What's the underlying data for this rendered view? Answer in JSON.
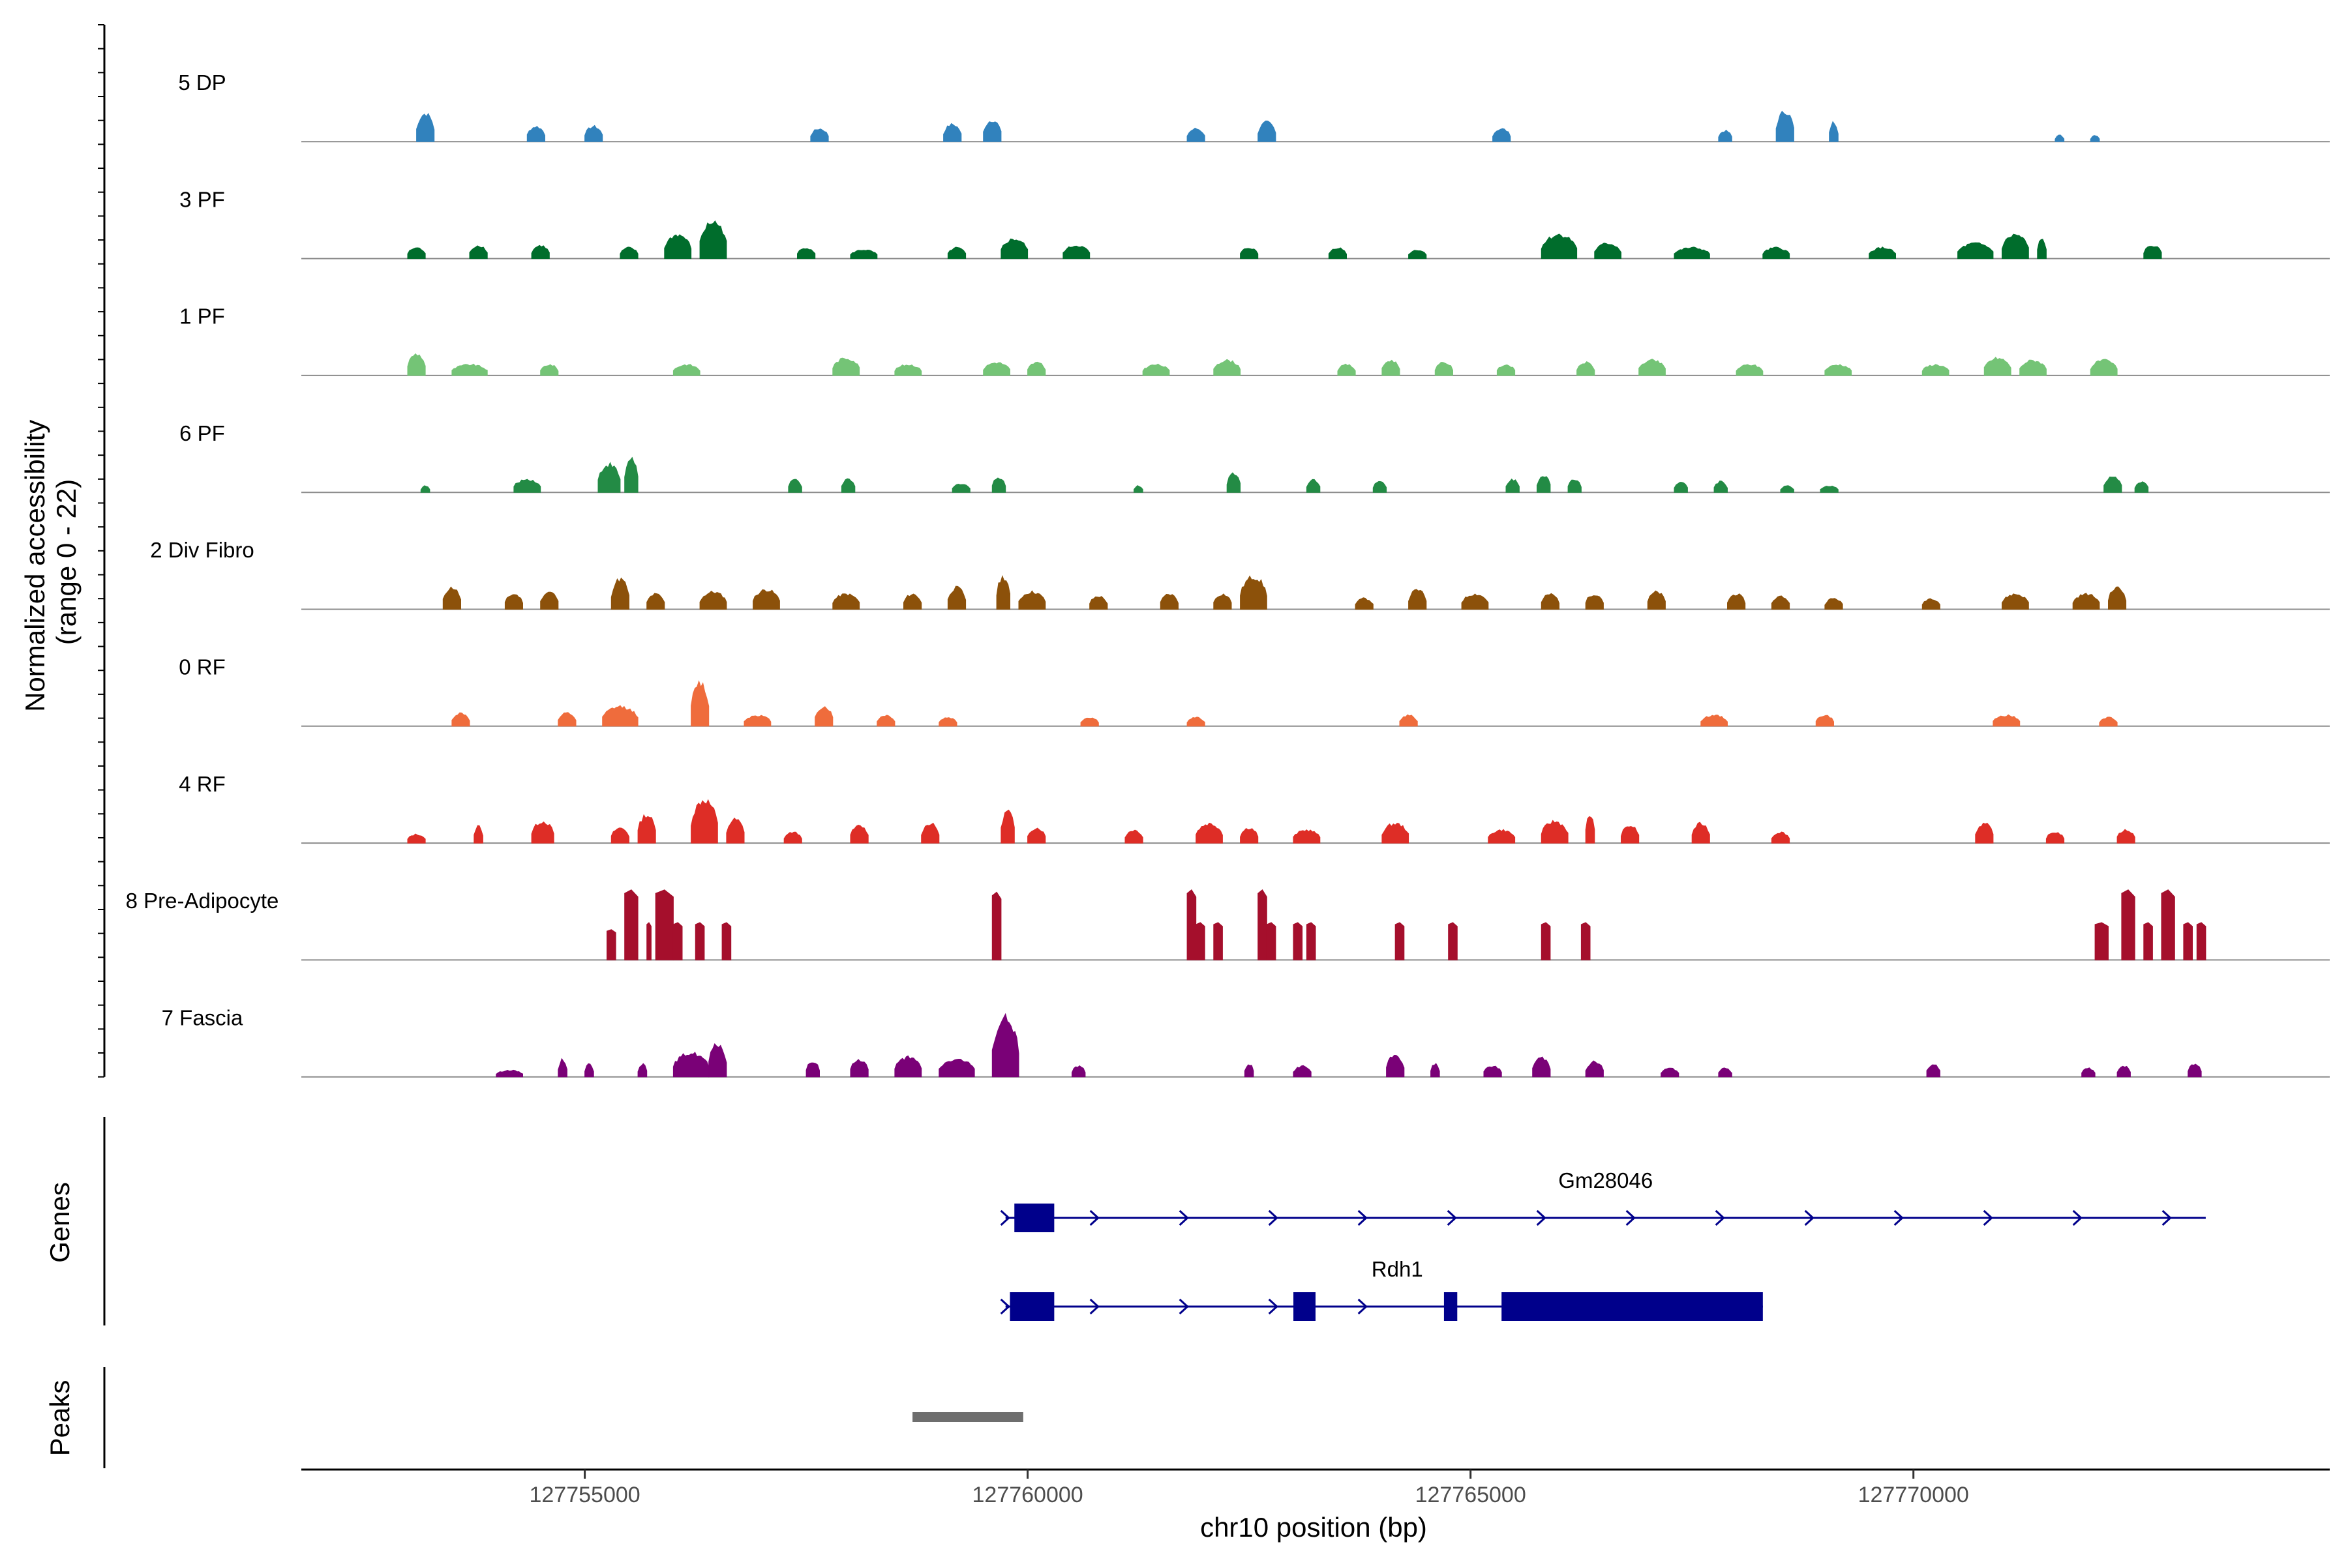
{
  "chart_data": {
    "type": "area",
    "title": "",
    "ylabel": "Normalized accessibility (range 0 - 22)",
    "ylabel_lines": [
      "Normalized accessibility",
      "(range 0 - 22)"
    ],
    "y_range": [
      0,
      22
    ],
    "xlabel": "chr10 position (bp)",
    "x_range": [
      127751800,
      127774700
    ],
    "x_ticks": [
      127755000,
      127760000,
      127765000,
      127770000
    ],
    "x_tick_labels": [
      "127755000",
      "127760000",
      "127765000",
      "127770000"
    ],
    "signal_start": 127752850,
    "signal_end": 127773300,
    "series": [
      {
        "name": "5 DP",
        "color": "#3182bd",
        "peaks": [
          [
            127753100,
            127753300,
            6.5
          ],
          [
            127754350,
            127754550,
            3.5
          ],
          [
            127755000,
            127755200,
            3.5
          ],
          [
            127757550,
            127757750,
            3.0
          ],
          [
            127759050,
            127759250,
            4.0
          ],
          [
            127759500,
            127759700,
            5.0
          ],
          [
            127761800,
            127762000,
            3.0
          ],
          [
            127762600,
            127762800,
            4.5
          ],
          [
            127765250,
            127765450,
            3.0
          ],
          [
            127767800,
            127767950,
            2.5
          ],
          [
            127768450,
            127768650,
            7.0
          ],
          [
            127769050,
            127769150,
            4.5
          ],
          [
            127771600,
            127771700,
            1.5
          ],
          [
            127772000,
            127772100,
            1.5
          ]
        ]
      },
      {
        "name": "3 PF",
        "color": "#006d2c",
        "peaks": [
          [
            127753000,
            127753200,
            2.5
          ],
          [
            127753700,
            127753900,
            3.0
          ],
          [
            127754400,
            127754600,
            3.0
          ],
          [
            127755400,
            127755600,
            2.5
          ],
          [
            127755900,
            127756200,
            5.5
          ],
          [
            127756300,
            127756600,
            8.5
          ],
          [
            127757400,
            127757600,
            2.5
          ],
          [
            127758000,
            127758300,
            2.0
          ],
          [
            127759100,
            127759300,
            2.5
          ],
          [
            127759700,
            127760000,
            4.5
          ],
          [
            127760400,
            127760700,
            3.0
          ],
          [
            127762400,
            127762600,
            2.5
          ],
          [
            127763400,
            127763600,
            2.5
          ],
          [
            127764300,
            127764500,
            2.0
          ],
          [
            127765800,
            127766200,
            5.5
          ],
          [
            127766400,
            127766700,
            3.5
          ],
          [
            127767300,
            127767700,
            2.5
          ],
          [
            127768300,
            127768600,
            2.5
          ],
          [
            127769500,
            127769800,
            2.5
          ],
          [
            127770500,
            127770900,
            3.5
          ],
          [
            127771000,
            127771300,
            5.5
          ],
          [
            127771400,
            127771500,
            4.5
          ],
          [
            127772600,
            127772800,
            3.0
          ]
        ]
      },
      {
        "name": "1 PF",
        "color": "#74c476",
        "peaks": [
          [
            127753000,
            127753200,
            5.0
          ],
          [
            127753500,
            127753900,
            2.5
          ],
          [
            127754500,
            127754700,
            2.5
          ],
          [
            127756000,
            127756300,
            2.5
          ],
          [
            127757800,
            127758100,
            4.0
          ],
          [
            127758500,
            127758800,
            2.5
          ],
          [
            127759500,
            127759800,
            3.0
          ],
          [
            127760000,
            127760200,
            3.0
          ],
          [
            127761300,
            127761600,
            2.5
          ],
          [
            127762100,
            127762400,
            3.5
          ],
          [
            127763500,
            127763700,
            2.5
          ],
          [
            127764000,
            127764200,
            3.5
          ],
          [
            127764600,
            127764800,
            3.0
          ],
          [
            127765300,
            127765500,
            2.5
          ],
          [
            127766200,
            127766400,
            3.0
          ],
          [
            127766900,
            127767200,
            3.5
          ],
          [
            127768000,
            127768300,
            2.5
          ],
          [
            127769000,
            127769300,
            2.5
          ],
          [
            127770100,
            127770400,
            2.5
          ],
          [
            127770800,
            127771100,
            4.0
          ],
          [
            127771200,
            127771500,
            3.5
          ],
          [
            127772000,
            127772300,
            3.5
          ]
        ]
      },
      {
        "name": "6 PF",
        "color": "#238b45",
        "peaks": [
          [
            127753150,
            127753250,
            1.5
          ],
          [
            127754200,
            127754500,
            3.0
          ],
          [
            127755150,
            127755400,
            6.5
          ],
          [
            127755450,
            127755600,
            8.0
          ],
          [
            127757300,
            127757450,
            3.0
          ],
          [
            127757900,
            127758050,
            3.0
          ],
          [
            127759150,
            127759350,
            2.0
          ],
          [
            127759600,
            127759750,
            3.5
          ],
          [
            127761200,
            127761300,
            1.5
          ],
          [
            127762250,
            127762400,
            4.5
          ],
          [
            127763150,
            127763300,
            3.0
          ],
          [
            127763900,
            127764050,
            2.5
          ],
          [
            127765400,
            127765550,
            3.0
          ],
          [
            127765750,
            127765900,
            4.0
          ],
          [
            127766100,
            127766250,
            3.0
          ],
          [
            127767300,
            127767450,
            2.5
          ],
          [
            127767750,
            127767900,
            2.5
          ],
          [
            127768500,
            127768650,
            1.5
          ],
          [
            127768950,
            127769150,
            1.5
          ],
          [
            127772150,
            127772350,
            3.5
          ],
          [
            127772500,
            127772650,
            2.5
          ]
        ]
      },
      {
        "name": "2 Div Fibro",
        "color": "#8c510a",
        "peaks": [
          [
            127753400,
            127753600,
            5.0
          ],
          [
            127754100,
            127754300,
            3.5
          ],
          [
            127754500,
            127754700,
            4.0
          ],
          [
            127755300,
            127755500,
            7.0
          ],
          [
            127755700,
            127755900,
            3.5
          ],
          [
            127756300,
            127756600,
            4.0
          ],
          [
            127756900,
            127757200,
            4.5
          ],
          [
            127757800,
            127758100,
            3.5
          ],
          [
            127758600,
            127758800,
            3.5
          ],
          [
            127759100,
            127759300,
            5.0
          ],
          [
            127759650,
            127759800,
            7.5
          ],
          [
            127759900,
            127760200,
            4.0
          ],
          [
            127760700,
            127760900,
            3.0
          ],
          [
            127761500,
            127761700,
            3.5
          ],
          [
            127762100,
            127762300,
            3.5
          ],
          [
            127762400,
            127762700,
            7.5
          ],
          [
            127763700,
            127763900,
            2.5
          ],
          [
            127764300,
            127764500,
            4.5
          ],
          [
            127764900,
            127765200,
            3.5
          ],
          [
            127765800,
            127766000,
            3.5
          ],
          [
            127766300,
            127766500,
            3.5
          ],
          [
            127767000,
            127767200,
            4.0
          ],
          [
            127767900,
            127768100,
            3.5
          ],
          [
            127768400,
            127768600,
            3.0
          ],
          [
            127769000,
            127769200,
            2.5
          ],
          [
            127770100,
            127770300,
            2.5
          ],
          [
            127771000,
            127771300,
            3.5
          ],
          [
            127771800,
            127772100,
            3.5
          ],
          [
            127772200,
            127772400,
            5.0
          ]
        ]
      },
      {
        "name": "0 RF",
        "color": "#ef6c3c",
        "peaks": [
          [
            127753500,
            127753700,
            3.0
          ],
          [
            127754700,
            127754900,
            3.0
          ],
          [
            127755200,
            127755600,
            4.5
          ],
          [
            127756200,
            127756400,
            10.0
          ],
          [
            127756800,
            127757100,
            2.5
          ],
          [
            127757600,
            127757800,
            4.5
          ],
          [
            127758300,
            127758500,
            2.5
          ],
          [
            127759000,
            127759200,
            2.0
          ],
          [
            127760600,
            127760800,
            2.0
          ],
          [
            127761800,
            127762000,
            2.0
          ],
          [
            127764200,
            127764400,
            2.5
          ],
          [
            127767600,
            127767900,
            2.5
          ],
          [
            127768900,
            127769100,
            2.5
          ],
          [
            127770900,
            127771200,
            2.5
          ],
          [
            127772100,
            127772300,
            2.0
          ]
        ]
      },
      {
        "name": "4 RF",
        "color": "#de2d26",
        "peaks": [
          [
            127753000,
            127753200,
            2.0
          ],
          [
            127753750,
            127753850,
            4.0
          ],
          [
            127754400,
            127754650,
            5.0
          ],
          [
            127755300,
            127755500,
            3.5
          ],
          [
            127755600,
            127755800,
            6.5
          ],
          [
            127756200,
            127756500,
            10.0
          ],
          [
            127756600,
            127756800,
            5.5
          ],
          [
            127757250,
            127757450,
            2.5
          ],
          [
            127758000,
            127758200,
            4.0
          ],
          [
            127758800,
            127759000,
            4.5
          ],
          [
            127759700,
            127759850,
            7.5
          ],
          [
            127760000,
            127760200,
            3.5
          ],
          [
            127761100,
            127761300,
            3.0
          ],
          [
            127761900,
            127762200,
            4.5
          ],
          [
            127762400,
            127762600,
            3.5
          ],
          [
            127763000,
            127763300,
            3.0
          ],
          [
            127764000,
            127764300,
            4.5
          ],
          [
            127765200,
            127765500,
            3.0
          ],
          [
            127765800,
            127766100,
            5.0
          ],
          [
            127766300,
            127766400,
            6.5
          ],
          [
            127766700,
            127766900,
            4.0
          ],
          [
            127767500,
            127767700,
            4.5
          ],
          [
            127768400,
            127768600,
            2.5
          ],
          [
            127770700,
            127770900,
            4.5
          ],
          [
            127771500,
            127771700,
            2.5
          ],
          [
            127772300,
            127772500,
            3.0
          ]
        ]
      },
      {
        "name": "8 Pre-Adipocyte",
        "color": "#a50f2c",
        "peaks": [
          [
            127755250,
            127755350,
            6.5
          ],
          [
            127755450,
            127755600,
            15.0
          ],
          [
            127755700,
            127755750,
            8.0
          ],
          [
            127755800,
            127756000,
            15.0
          ],
          [
            127756000,
            127756100,
            8.0
          ],
          [
            127756250,
            127756350,
            8.0
          ],
          [
            127756550,
            127756650,
            8.0
          ],
          [
            127759600,
            127759700,
            14.5
          ],
          [
            127761800,
            127761900,
            15.0
          ],
          [
            127761900,
            127762000,
            8.0
          ],
          [
            127762100,
            127762200,
            8.0
          ],
          [
            127762600,
            127762700,
            15.0
          ],
          [
            127762700,
            127762800,
            8.0
          ],
          [
            127763000,
            127763100,
            8.0
          ],
          [
            127763150,
            127763250,
            8.0
          ],
          [
            127764150,
            127764250,
            8.0
          ],
          [
            127764750,
            127764850,
            8.0
          ],
          [
            127765800,
            127765900,
            8.0
          ],
          [
            127766250,
            127766350,
            8.0
          ],
          [
            127772050,
            127772200,
            8.0
          ],
          [
            127772350,
            127772500,
            15.0
          ],
          [
            127772600,
            127772700,
            8.0
          ],
          [
            127772800,
            127772950,
            15.0
          ],
          [
            127773050,
            127773150,
            8.0
          ],
          [
            127773200,
            127773300,
            8.0
          ]
        ]
      },
      {
        "name": "7 Fascia",
        "color": "#7a0177",
        "peaks": [
          [
            127754000,
            127754300,
            1.5
          ],
          [
            127754700,
            127754800,
            4.0
          ],
          [
            127755000,
            127755100,
            3.0
          ],
          [
            127755600,
            127755700,
            3.0
          ],
          [
            127756000,
            127756400,
            5.5
          ],
          [
            127756400,
            127756600,
            7.5
          ],
          [
            127757500,
            127757650,
            3.5
          ],
          [
            127758000,
            127758200,
            4.0
          ],
          [
            127758500,
            127758800,
            4.5
          ],
          [
            127759000,
            127759400,
            4.0
          ],
          [
            127759600,
            127759900,
            13.5
          ],
          [
            127760500,
            127760650,
            2.5
          ],
          [
            127762450,
            127762550,
            3.0
          ],
          [
            127763000,
            127763200,
            2.5
          ],
          [
            127764050,
            127764250,
            5.0
          ],
          [
            127764550,
            127764650,
            3.0
          ],
          [
            127765150,
            127765350,
            2.5
          ],
          [
            127765700,
            127765900,
            4.5
          ],
          [
            127766300,
            127766500,
            3.5
          ],
          [
            127767150,
            127767350,
            2.0
          ],
          [
            127767800,
            127767950,
            2.0
          ],
          [
            127770150,
            127770300,
            3.0
          ],
          [
            127771900,
            127772050,
            2.0
          ],
          [
            127772300,
            127772450,
            2.5
          ],
          [
            127773100,
            127773250,
            3.0
          ]
        ]
      }
    ],
    "genes": [
      {
        "name": "Gm28046",
        "start": 127759750,
        "end": 127773300,
        "exons": [
          [
            127759850,
            127760300
          ]
        ]
      },
      {
        "name": "Rdh1",
        "start": 127759750,
        "end": 127768300,
        "exons": [
          [
            127759800,
            127760300
          ],
          [
            127763000,
            127763250
          ],
          [
            127764700,
            127764850
          ],
          [
            127765350,
            127768300
          ]
        ]
      }
    ],
    "genes_label": "Genes",
    "peaks_label": "Peaks",
    "peaks_ranges": [
      [
        127758700,
        127759950
      ]
    ]
  }
}
